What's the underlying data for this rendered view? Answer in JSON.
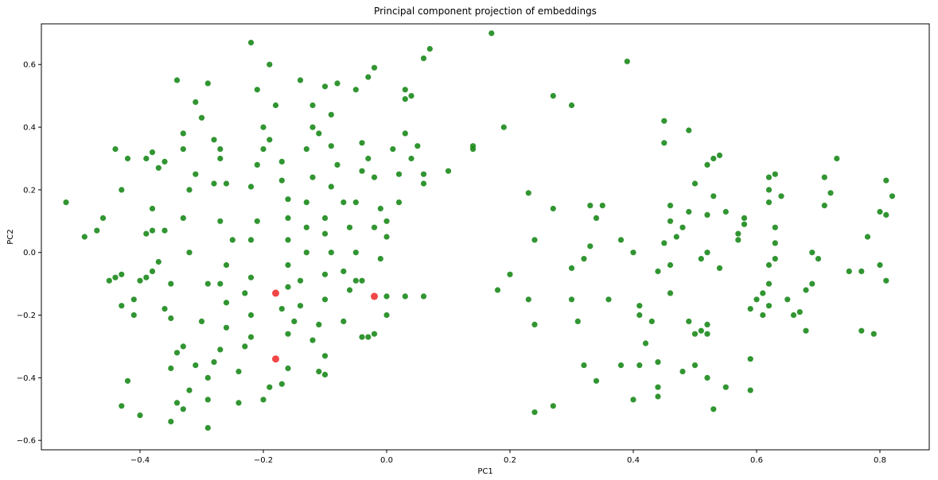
{
  "chart_data": {
    "type": "scatter",
    "title": "Principal component projection of embeddings",
    "xlabel": "PC1",
    "ylabel": "PC2",
    "xlim": [
      -0.56,
      0.88
    ],
    "ylim": [
      -0.63,
      0.73
    ],
    "grid": false,
    "x_ticks": [
      -0.4,
      -0.2,
      0.0,
      0.2,
      0.4,
      0.6,
      0.8
    ],
    "x_tick_labels": [
      "−0.4",
      "−0.2",
      "0.0",
      "0.2",
      "0.4",
      "0.6",
      "0.8"
    ],
    "y_ticks": [
      -0.6,
      -0.4,
      -0.2,
      0.0,
      0.2,
      0.4,
      0.6
    ],
    "y_tick_labels": [
      "−0.6",
      "−0.4",
      "−0.2",
      "0.0",
      "0.2",
      "0.4",
      "0.6"
    ],
    "colors": {
      "main": "#1b8a1b",
      "highlight": "#f03232"
    },
    "series": [
      {
        "color": "#1b8a1b",
        "points": [
          [
            -0.52,
            0.16
          ],
          [
            -0.49,
            0.05
          ],
          [
            -0.47,
            0.07
          ],
          [
            -0.46,
            0.11
          ],
          [
            -0.44,
            0.33
          ],
          [
            -0.43,
            0.2
          ],
          [
            -0.42,
            0.3
          ],
          [
            -0.44,
            -0.08
          ],
          [
            -0.43,
            -0.07
          ],
          [
            -0.45,
            -0.09
          ],
          [
            -0.43,
            -0.17
          ],
          [
            -0.41,
            -0.15
          ],
          [
            -0.42,
            -0.41
          ],
          [
            -0.43,
            -0.49
          ],
          [
            -0.4,
            -0.52
          ],
          [
            -0.41,
            -0.2
          ],
          [
            -0.4,
            -0.09
          ],
          [
            -0.39,
            -0.08
          ],
          [
            -0.38,
            -0.06
          ],
          [
            -0.39,
            0.06
          ],
          [
            -0.38,
            0.07
          ],
          [
            -0.39,
            0.3
          ],
          [
            -0.38,
            0.32
          ],
          [
            -0.37,
            0.27
          ],
          [
            -0.36,
            0.29
          ],
          [
            -0.38,
            0.14
          ],
          [
            -0.36,
            0.07
          ],
          [
            -0.37,
            -0.03
          ],
          [
            -0.35,
            -0.1
          ],
          [
            -0.36,
            -0.18
          ],
          [
            -0.35,
            -0.21
          ],
          [
            -0.34,
            -0.32
          ],
          [
            -0.33,
            -0.3
          ],
          [
            -0.35,
            -0.37
          ],
          [
            -0.34,
            -0.48
          ],
          [
            -0.35,
            -0.54
          ],
          [
            -0.33,
            -0.5
          ],
          [
            -0.32,
            -0.44
          ],
          [
            -0.31,
            -0.36
          ],
          [
            -0.3,
            -0.22
          ],
          [
            -0.29,
            -0.1
          ],
          [
            -0.32,
            0.0
          ],
          [
            -0.33,
            0.11
          ],
          [
            -0.32,
            0.2
          ],
          [
            -0.31,
            0.25
          ],
          [
            -0.33,
            0.33
          ],
          [
            -0.33,
            0.38
          ],
          [
            -0.31,
            0.48
          ],
          [
            -0.34,
            0.55
          ],
          [
            -0.29,
            0.54
          ],
          [
            -0.3,
            0.43
          ],
          [
            -0.28,
            0.36
          ],
          [
            -0.27,
            0.33
          ],
          [
            -0.27,
            0.3
          ],
          [
            -0.28,
            0.22
          ],
          [
            -0.26,
            0.22
          ],
          [
            -0.27,
            0.1
          ],
          [
            -0.25,
            0.04
          ],
          [
            -0.26,
            -0.04
          ],
          [
            -0.27,
            -0.1
          ],
          [
            -0.26,
            -0.16
          ],
          [
            -0.26,
            -0.24
          ],
          [
            -0.27,
            -0.31
          ],
          [
            -0.28,
            -0.35
          ],
          [
            -0.29,
            -0.4
          ],
          [
            -0.29,
            -0.47
          ],
          [
            -0.29,
            -0.56
          ],
          [
            -0.24,
            -0.38
          ],
          [
            -0.24,
            -0.48
          ],
          [
            -0.23,
            -0.3
          ],
          [
            -0.22,
            -0.27
          ],
          [
            -0.22,
            -0.2
          ],
          [
            -0.23,
            -0.13
          ],
          [
            -0.22,
            -0.08
          ],
          [
            -0.22,
            0.04
          ],
          [
            -0.21,
            0.1
          ],
          [
            -0.22,
            0.21
          ],
          [
            -0.21,
            0.28
          ],
          [
            -0.2,
            0.33
          ],
          [
            -0.2,
            0.4
          ],
          [
            -0.21,
            0.52
          ],
          [
            -0.22,
            0.67
          ],
          [
            -0.19,
            0.6
          ],
          [
            -0.18,
            0.47
          ],
          [
            -0.19,
            0.36
          ],
          [
            -0.17,
            0.29
          ],
          [
            -0.17,
            0.23
          ],
          [
            -0.16,
            0.17
          ],
          [
            -0.16,
            0.11
          ],
          [
            -0.16,
            0.04
          ],
          [
            -0.16,
            -0.04
          ],
          [
            -0.16,
            -0.11
          ],
          [
            -0.17,
            -0.18
          ],
          [
            -0.16,
            -0.26
          ],
          [
            -0.16,
            -0.37
          ],
          [
            -0.17,
            -0.42
          ],
          [
            -0.2,
            -0.47
          ],
          [
            -0.19,
            -0.43
          ],
          [
            -0.15,
            -0.22
          ],
          [
            -0.14,
            -0.17
          ],
          [
            -0.14,
            -0.09
          ],
          [
            -0.13,
            0.0
          ],
          [
            -0.13,
            0.08
          ],
          [
            -0.13,
            0.16
          ],
          [
            -0.12,
            0.24
          ],
          [
            -0.13,
            0.33
          ],
          [
            -0.12,
            0.4
          ],
          [
            -0.12,
            0.47
          ],
          [
            -0.14,
            0.55
          ],
          [
            -0.11,
            0.38
          ],
          [
            -0.1,
            0.53
          ],
          [
            -0.08,
            0.54
          ],
          [
            -0.09,
            0.44
          ],
          [
            -0.09,
            0.34
          ],
          [
            -0.08,
            0.28
          ],
          [
            -0.09,
            0.21
          ],
          [
            -0.07,
            0.16
          ],
          [
            -0.1,
            0.11
          ],
          [
            -0.1,
            0.06
          ],
          [
            -0.09,
            0.0
          ],
          [
            -0.1,
            -0.07
          ],
          [
            -0.1,
            -0.15
          ],
          [
            -0.11,
            -0.23
          ],
          [
            -0.12,
            -0.28
          ],
          [
            -0.1,
            -0.33
          ],
          [
            -0.11,
            -0.38
          ],
          [
            -0.1,
            -0.39
          ],
          [
            -0.07,
            -0.22
          ],
          [
            -0.06,
            -0.12
          ],
          [
            -0.07,
            -0.06
          ],
          [
            -0.05,
            0.0
          ],
          [
            -0.06,
            0.08
          ],
          [
            -0.05,
            0.16
          ],
          [
            -0.04,
            0.26
          ],
          [
            -0.04,
            0.35
          ],
          [
            -0.05,
            0.52
          ],
          [
            -0.03,
            0.56
          ],
          [
            -0.02,
            0.59
          ],
          [
            -0.03,
            0.3
          ],
          [
            -0.02,
            0.24
          ],
          [
            -0.01,
            0.14
          ],
          [
            0.0,
            0.1
          ],
          [
            0.02,
            0.16
          ],
          [
            0.02,
            0.25
          ],
          [
            0.01,
            0.33
          ],
          [
            0.03,
            0.38
          ],
          [
            0.04,
            0.5
          ],
          [
            0.03,
            0.49
          ],
          [
            0.03,
            0.52
          ],
          [
            0.06,
            0.62
          ],
          [
            0.07,
            0.65
          ],
          [
            0.05,
            0.34
          ],
          [
            0.04,
            0.3
          ],
          [
            0.06,
            0.22
          ],
          [
            0.06,
            0.25
          ],
          [
            0.1,
            0.26
          ],
          [
            0.0,
            0.05
          ],
          [
            -0.02,
            0.08
          ],
          [
            -0.01,
            -0.02
          ],
          [
            -0.04,
            -0.09
          ],
          [
            -0.05,
            -0.09
          ],
          [
            0.0,
            -0.14
          ],
          [
            0.0,
            -0.2
          ],
          [
            0.03,
            -0.14
          ],
          [
            0.06,
            -0.14
          ],
          [
            -0.02,
            -0.26
          ],
          [
            -0.04,
            -0.27
          ],
          [
            -0.03,
            -0.27
          ],
          [
            0.14,
            0.34
          ],
          [
            0.14,
            0.33
          ],
          [
            0.17,
            0.7
          ],
          [
            0.19,
            0.4
          ],
          [
            0.2,
            -0.07
          ],
          [
            0.18,
            -0.12
          ],
          [
            0.23,
            -0.15
          ],
          [
            0.24,
            -0.23
          ],
          [
            0.24,
            -0.51
          ],
          [
            0.27,
            -0.49
          ],
          [
            0.23,
            0.19
          ],
          [
            0.24,
            0.04
          ],
          [
            0.27,
            0.14
          ],
          [
            0.27,
            0.5
          ],
          [
            0.3,
            0.47
          ],
          [
            0.3,
            -0.05
          ],
          [
            0.32,
            -0.02
          ],
          [
            0.33,
            0.02
          ],
          [
            0.3,
            -0.15
          ],
          [
            0.31,
            -0.22
          ],
          [
            0.32,
            -0.36
          ],
          [
            0.34,
            -0.41
          ],
          [
            0.34,
            0.11
          ],
          [
            0.33,
            0.15
          ],
          [
            0.35,
            0.15
          ],
          [
            0.36,
            -0.15
          ],
          [
            0.38,
            -0.36
          ],
          [
            0.39,
            0.61
          ],
          [
            0.38,
            0.04
          ],
          [
            0.4,
            0.0
          ],
          [
            0.41,
            -0.17
          ],
          [
            0.41,
            -0.2
          ],
          [
            0.42,
            -0.29
          ],
          [
            0.43,
            -0.22
          ],
          [
            0.4,
            -0.47
          ],
          [
            0.44,
            -0.43
          ],
          [
            0.44,
            -0.46
          ],
          [
            0.44,
            -0.35
          ],
          [
            0.41,
            -0.36
          ],
          [
            0.44,
            -0.06
          ],
          [
            0.45,
            0.03
          ],
          [
            0.46,
            0.1
          ],
          [
            0.46,
            0.15
          ],
          [
            0.45,
            0.35
          ],
          [
            0.45,
            0.42
          ],
          [
            0.49,
            0.39
          ],
          [
            0.46,
            -0.04
          ],
          [
            0.47,
            0.05
          ],
          [
            0.48,
            0.08
          ],
          [
            0.49,
            0.13
          ],
          [
            0.5,
            0.22
          ],
          [
            0.46,
            -0.13
          ],
          [
            0.48,
            -0.38
          ],
          [
            0.49,
            -0.22
          ],
          [
            0.5,
            -0.26
          ],
          [
            0.5,
            -0.36
          ],
          [
            0.51,
            -0.25
          ],
          [
            0.51,
            -0.02
          ],
          [
            0.52,
            -0.23
          ],
          [
            0.52,
            -0.26
          ],
          [
            0.52,
            -0.4
          ],
          [
            0.53,
            -0.5
          ],
          [
            0.52,
            0.0
          ],
          [
            0.52,
            0.12
          ],
          [
            0.53,
            0.18
          ],
          [
            0.52,
            0.28
          ],
          [
            0.53,
            0.3
          ],
          [
            0.54,
            0.31
          ],
          [
            0.55,
            0.13
          ],
          [
            0.54,
            -0.05
          ],
          [
            0.55,
            -0.43
          ],
          [
            0.57,
            0.04
          ],
          [
            0.57,
            0.06
          ],
          [
            0.58,
            0.09
          ],
          [
            0.58,
            0.11
          ],
          [
            0.59,
            -0.34
          ],
          [
            0.59,
            -0.44
          ],
          [
            0.59,
            -0.18
          ],
          [
            0.6,
            -0.15
          ],
          [
            0.61,
            -0.2
          ],
          [
            0.61,
            -0.13
          ],
          [
            0.62,
            -0.17
          ],
          [
            0.62,
            -0.1
          ],
          [
            0.62,
            -0.04
          ],
          [
            0.63,
            -0.02
          ],
          [
            0.63,
            0.03
          ],
          [
            0.63,
            0.08
          ],
          [
            0.62,
            0.16
          ],
          [
            0.62,
            0.2
          ],
          [
            0.62,
            0.24
          ],
          [
            0.63,
            0.25
          ],
          [
            0.64,
            0.18
          ],
          [
            0.65,
            -0.15
          ],
          [
            0.66,
            -0.2
          ],
          [
            0.67,
            -0.19
          ],
          [
            0.68,
            -0.25
          ],
          [
            0.68,
            -0.12
          ],
          [
            0.69,
            -0.1
          ],
          [
            0.69,
            0.0
          ],
          [
            0.7,
            -0.02
          ],
          [
            0.71,
            0.15
          ],
          [
            0.71,
            0.24
          ],
          [
            0.72,
            0.19
          ],
          [
            0.73,
            0.3
          ],
          [
            0.75,
            -0.06
          ],
          [
            0.77,
            -0.06
          ],
          [
            0.77,
            -0.25
          ],
          [
            0.79,
            -0.26
          ],
          [
            0.78,
            0.05
          ],
          [
            0.8,
            -0.04
          ],
          [
            0.8,
            0.13
          ],
          [
            0.81,
            0.23
          ],
          [
            0.82,
            0.18
          ],
          [
            0.81,
            0.12
          ],
          [
            0.81,
            -0.09
          ]
        ]
      },
      {
        "color": "#f03232",
        "points": [
          [
            -0.18,
            -0.13
          ],
          [
            -0.02,
            -0.14
          ],
          [
            -0.18,
            -0.34
          ]
        ]
      }
    ]
  }
}
